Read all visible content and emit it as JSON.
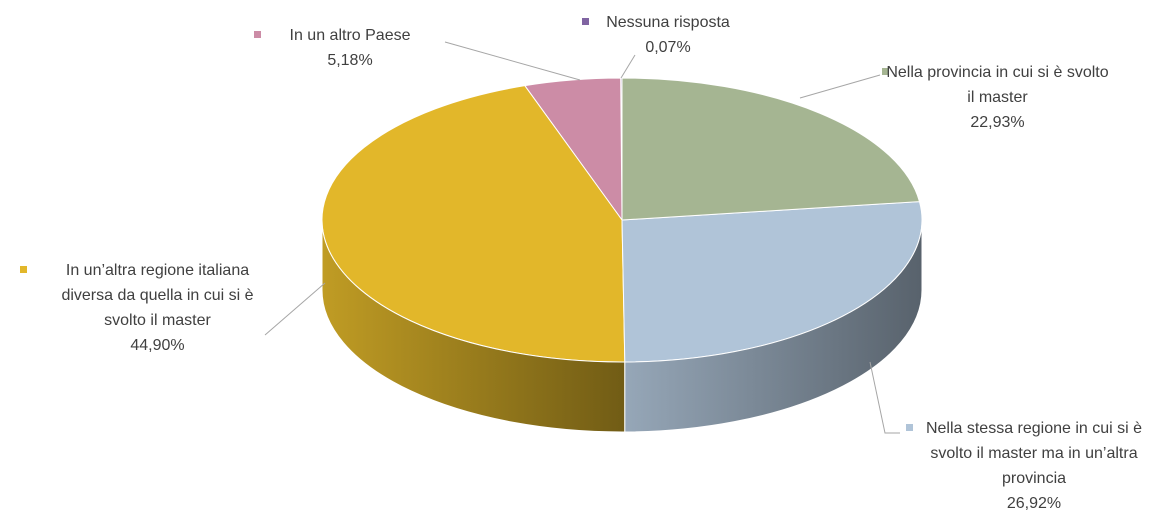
{
  "chart_data": {
    "type": "pie",
    "categories": [
      "Nella provincia in cui si è svolto il master",
      "Nella stessa regione in cui si è svolto il master ma in un’altra provincia",
      "In un’altra regione italiana diversa da quella in cui si è svolto il master",
      "In un altro Paese",
      "Nessuna risposta"
    ],
    "values": [
      22.93,
      26.92,
      44.9,
      5.18,
      0.07
    ],
    "value_labels": [
      "22,93%",
      "26,92%",
      "44,90%",
      "5,18%",
      "0,07%"
    ],
    "colors": [
      "#a5b592",
      "#b0c4d8",
      "#e2b72a",
      "#cc8ca6",
      "#8064a2"
    ]
  }
}
